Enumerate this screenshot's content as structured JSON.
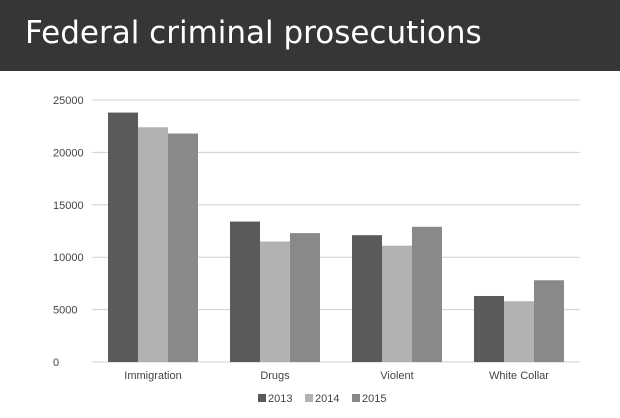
{
  "slide": {
    "title": "Federal criminal prosecutions"
  },
  "chart_data": {
    "type": "bar",
    "title": "",
    "xlabel": "",
    "ylabel": "",
    "categories": [
      "Immigration",
      "Drugs",
      "Violent",
      "White Collar"
    ],
    "series": [
      {
        "name": "2013",
        "values": [
          23800,
          13400,
          12100,
          6300
        ],
        "color": "#5a5a5a"
      },
      {
        "name": "2014",
        "values": [
          22400,
          11500,
          11100,
          5800
        ],
        "color": "#b2b2b2"
      },
      {
        "name": "2015",
        "values": [
          21800,
          12300,
          12900,
          7800
        ],
        "color": "#898989"
      }
    ],
    "ylim": [
      0,
      25000
    ],
    "yticks": [
      0,
      5000,
      10000,
      15000,
      20000,
      25000
    ],
    "grid": true,
    "legend_position": "bottom"
  },
  "colors": {
    "title_bar": "#363636",
    "gridline": "#cfcfcf"
  }
}
